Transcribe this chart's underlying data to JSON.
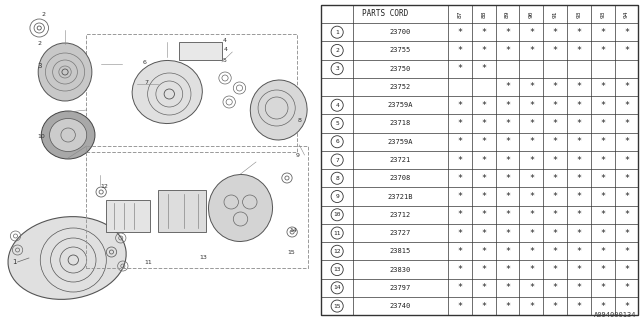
{
  "diagram_code": "A094000134",
  "bg_color": "#ffffff",
  "col_header": "PARTS CORD",
  "year_cols": [
    "87",
    "88",
    "89",
    "90",
    "91",
    "93",
    "93",
    "94"
  ],
  "rows": [
    {
      "num": "1",
      "code": "23700",
      "marks": [
        true,
        true,
        true,
        true,
        true,
        true,
        true,
        true
      ]
    },
    {
      "num": "2",
      "code": "23755",
      "marks": [
        true,
        true,
        true,
        true,
        true,
        true,
        true,
        true
      ]
    },
    {
      "num": "3",
      "code": "23750",
      "marks": [
        true,
        true,
        false,
        false,
        false,
        false,
        false,
        false
      ]
    },
    {
      "num": "3",
      "code": "23752",
      "marks": [
        false,
        false,
        true,
        true,
        true,
        true,
        true,
        true
      ]
    },
    {
      "num": "4",
      "code": "23759A",
      "marks": [
        true,
        true,
        true,
        true,
        true,
        true,
        true,
        true
      ]
    },
    {
      "num": "5",
      "code": "23718",
      "marks": [
        true,
        true,
        true,
        true,
        true,
        true,
        true,
        true
      ]
    },
    {
      "num": "6",
      "code": "23759A",
      "marks": [
        true,
        true,
        true,
        true,
        true,
        true,
        true,
        true
      ]
    },
    {
      "num": "7",
      "code": "23721",
      "marks": [
        true,
        true,
        true,
        true,
        true,
        true,
        true,
        true
      ]
    },
    {
      "num": "8",
      "code": "23708",
      "marks": [
        true,
        true,
        true,
        true,
        true,
        true,
        true,
        true
      ]
    },
    {
      "num": "9",
      "code": "23721B",
      "marks": [
        true,
        true,
        true,
        true,
        true,
        true,
        true,
        true
      ]
    },
    {
      "num": "10",
      "code": "23712",
      "marks": [
        true,
        true,
        true,
        true,
        true,
        true,
        true,
        true
      ]
    },
    {
      "num": "11",
      "code": "23727",
      "marks": [
        true,
        true,
        true,
        true,
        true,
        true,
        true,
        true
      ]
    },
    {
      "num": "12",
      "code": "23815",
      "marks": [
        true,
        true,
        true,
        true,
        true,
        true,
        true,
        true
      ]
    },
    {
      "num": "13",
      "code": "23830",
      "marks": [
        true,
        true,
        true,
        true,
        true,
        true,
        true,
        true
      ]
    },
    {
      "num": "14",
      "code": "23797",
      "marks": [
        true,
        true,
        true,
        true,
        true,
        true,
        true,
        true
      ]
    },
    {
      "num": "15",
      "code": "23740",
      "marks": [
        true,
        true,
        true,
        true,
        true,
        true,
        true,
        true
      ]
    }
  ]
}
